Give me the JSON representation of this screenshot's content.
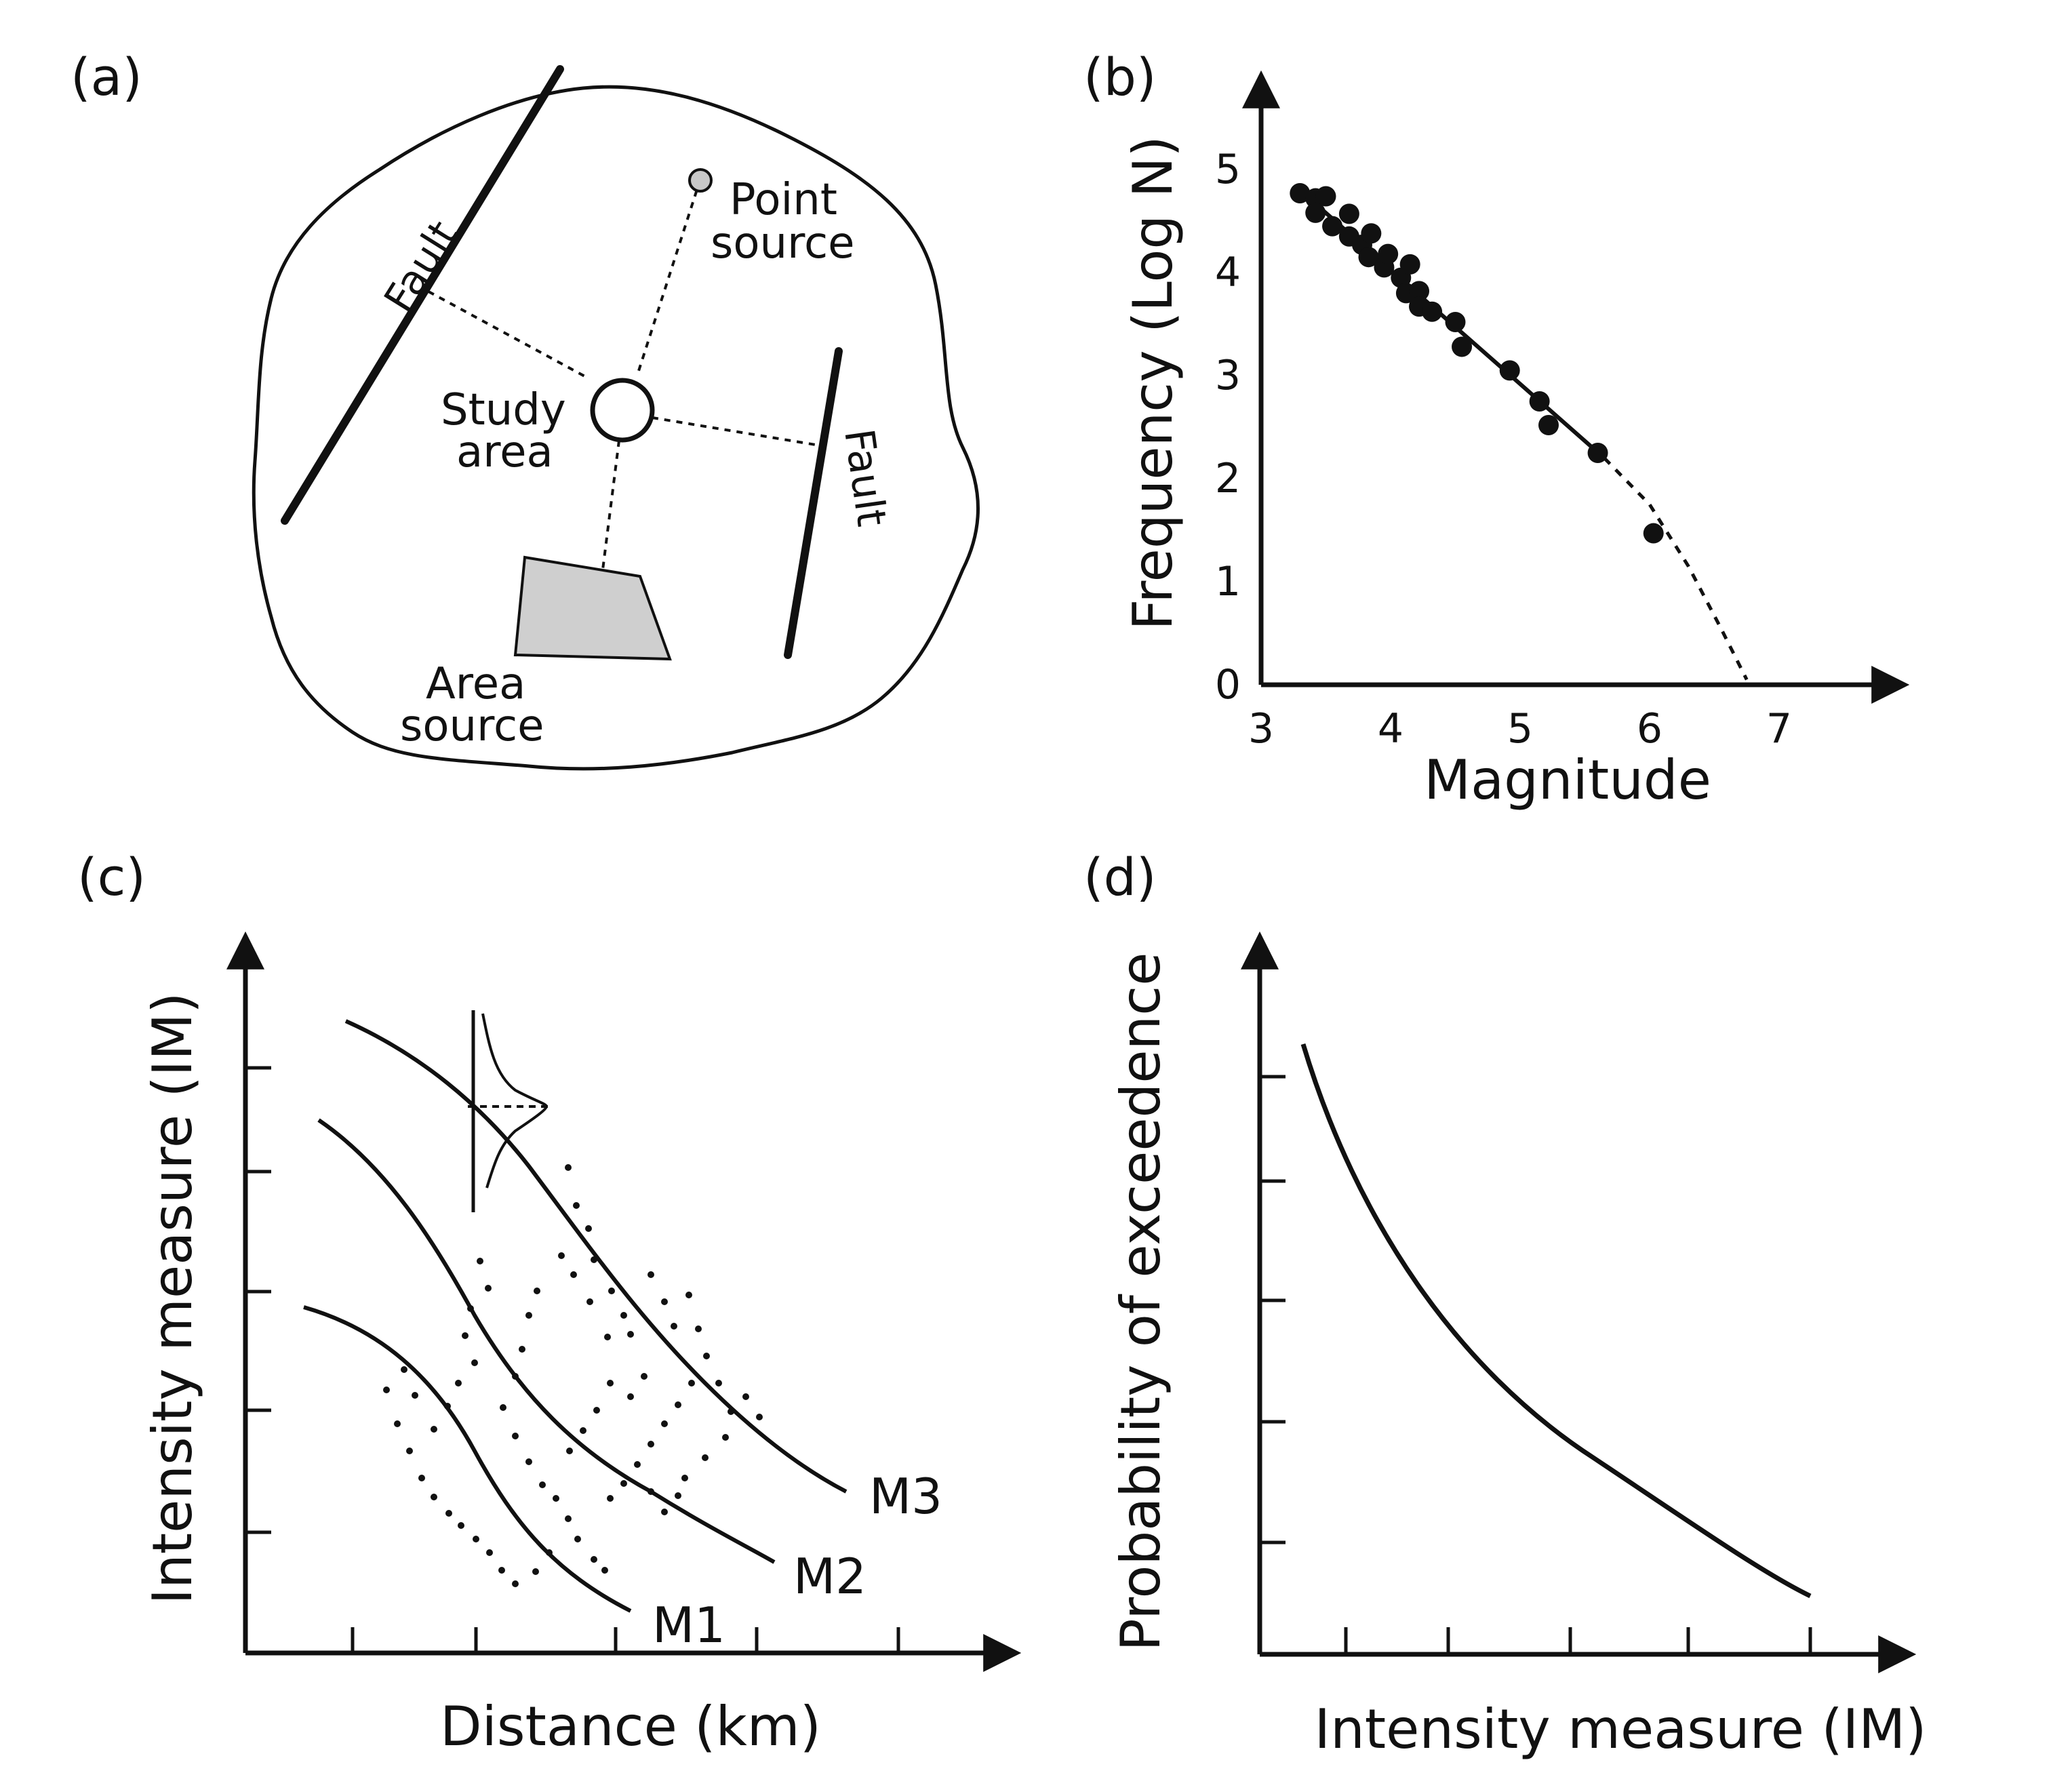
{
  "panel_a": {
    "label": "(a)",
    "fault_1": "Fault",
    "fault_2": "Fault",
    "point_source_line1": "Point",
    "point_source_line2": "source",
    "study_area_line1": "Study",
    "study_area_line2": "area",
    "area_source_line1": "Area",
    "area_source_line2": "source"
  },
  "panel_b": {
    "label": "(b)",
    "chart_data": {
      "type": "scatter",
      "title": "",
      "xlabel": "Magnitude",
      "ylabel": "Frequency (Log N)",
      "xlim": [
        3,
        7.9
      ],
      "ylim": [
        0,
        5.8
      ],
      "x_ticks": [
        "3",
        "4",
        "5",
        "6",
        "7"
      ],
      "y_ticks": [
        "0",
        "1",
        "2",
        "3",
        "4",
        "5"
      ],
      "points": [
        [
          3.3,
          4.77
        ],
        [
          3.42,
          4.72
        ],
        [
          3.5,
          4.74
        ],
        [
          3.42,
          4.58
        ],
        [
          3.55,
          4.45
        ],
        [
          3.68,
          4.57
        ],
        [
          3.68,
          4.35
        ],
        [
          3.78,
          4.27
        ],
        [
          3.85,
          4.38
        ],
        [
          3.83,
          4.15
        ],
        [
          3.95,
          4.05
        ],
        [
          3.98,
          4.18
        ],
        [
          4.08,
          3.95
        ],
        [
          4.15,
          4.08
        ],
        [
          4.12,
          3.8
        ],
        [
          4.22,
          3.82
        ],
        [
          4.22,
          3.67
        ],
        [
          4.32,
          3.62
        ],
        [
          4.5,
          3.52
        ],
        [
          4.55,
          3.28
        ],
        [
          4.92,
          3.05
        ],
        [
          5.15,
          2.75
        ],
        [
          5.22,
          2.52
        ],
        [
          5.6,
          2.25
        ],
        [
          6.03,
          1.47
        ]
      ],
      "fit_line": [
        [
          3.3,
          4.8
        ],
        [
          5.65,
          2.2
        ]
      ],
      "extrapolation": [
        [
          5.65,
          2.2
        ],
        [
          6.0,
          1.75
        ],
        [
          6.3,
          1.15
        ],
        [
          6.55,
          0.55
        ],
        [
          6.75,
          0.05
        ]
      ]
    }
  },
  "panel_c": {
    "label": "(c)",
    "xlabel": "Distance (km)",
    "ylabel": "Intensity measure (IM)",
    "curves": [
      {
        "name": "M1"
      },
      {
        "name": "M2"
      },
      {
        "name": "M3"
      }
    ]
  },
  "panel_d": {
    "label": "(d)",
    "xlabel": "Intensity measure (IM)",
    "ylabel": "Probability of exceedence"
  }
}
